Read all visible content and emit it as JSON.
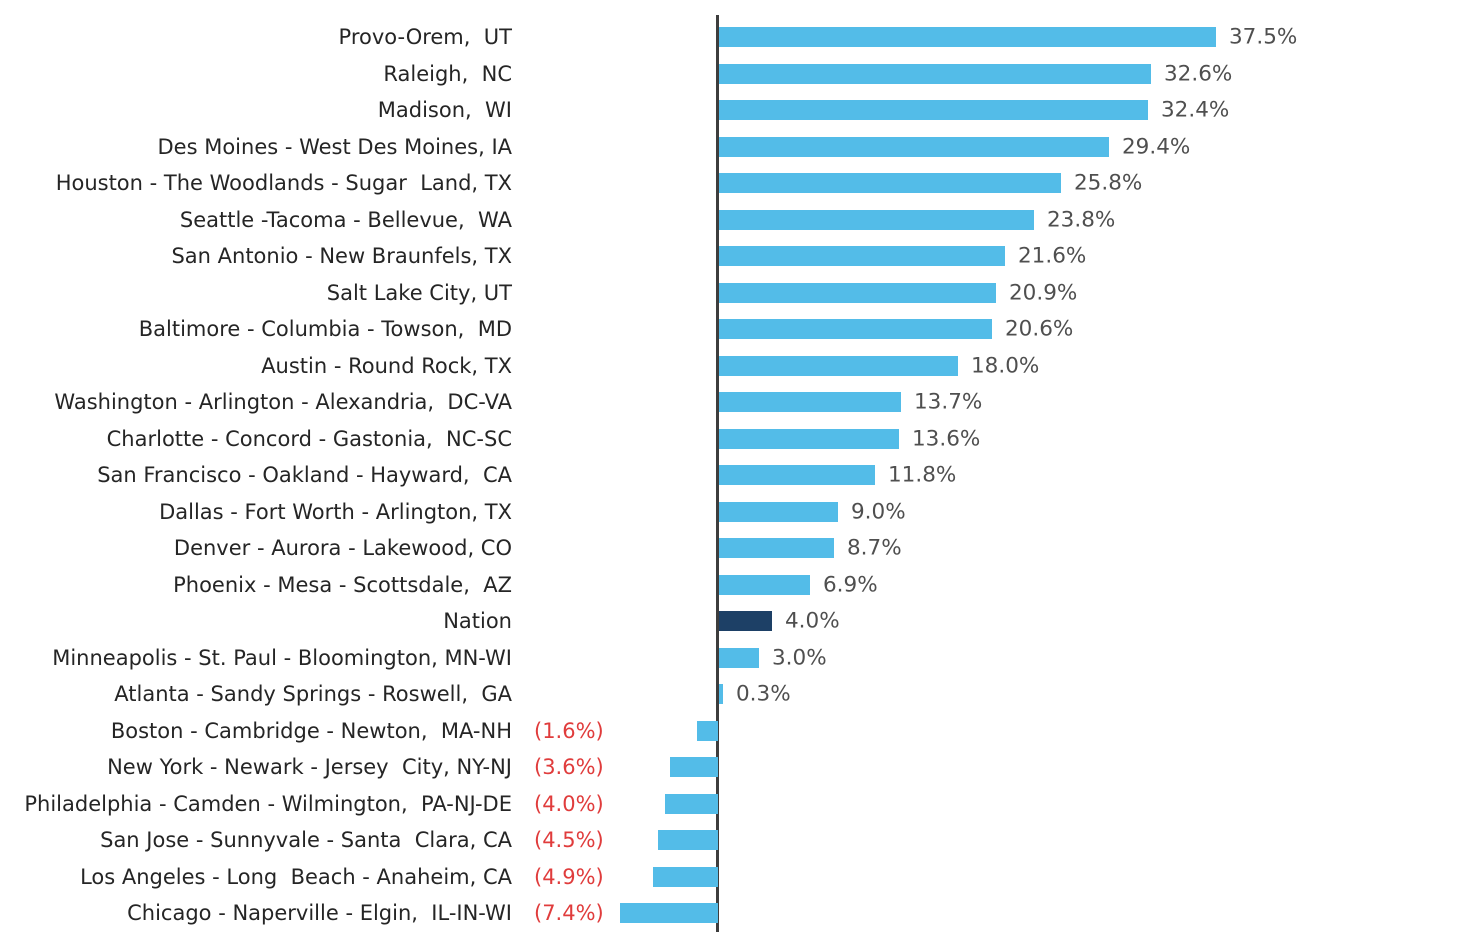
{
  "chart_data": {
    "type": "bar",
    "orientation": "horizontal",
    "title": "",
    "xlabel": "",
    "ylabel": "",
    "value_unit": "%",
    "xlim": [
      -8,
      40
    ],
    "grid": false,
    "legend": false,
    "zero_axis_line": true,
    "colors": {
      "bar": "#53bce8",
      "highlight_bar": "#1d4066",
      "negative_value_text": "#e03c3c",
      "value_text": "#4f4f4f",
      "category_text": "#252525",
      "axis_line": "#3d3d3d",
      "background": "#ffffff"
    },
    "bars": [
      {
        "category": "Provo-Orem,  UT",
        "value": 37.5,
        "label": "37.5%",
        "highlight": false
      },
      {
        "category": "Raleigh,  NC",
        "value": 32.6,
        "label": "32.6%",
        "highlight": false
      },
      {
        "category": "Madison,  WI",
        "value": 32.4,
        "label": "32.4%",
        "highlight": false
      },
      {
        "category": "Des Moines - West Des Moines, IA",
        "value": 29.4,
        "label": "29.4%",
        "highlight": false
      },
      {
        "category": "Houston - The Woodlands - Sugar  Land, TX",
        "value": 25.8,
        "label": "25.8%",
        "highlight": false
      },
      {
        "category": "Seattle -Tacoma - Bellevue,  WA",
        "value": 23.8,
        "label": "23.8%",
        "highlight": false
      },
      {
        "category": "San Antonio - New Braunfels, TX",
        "value": 21.6,
        "label": "21.6%",
        "highlight": false
      },
      {
        "category": "Salt Lake City, UT",
        "value": 20.9,
        "label": "20.9%",
        "highlight": false
      },
      {
        "category": "Baltimore - Columbia - Towson,  MD",
        "value": 20.6,
        "label": "20.6%",
        "highlight": false
      },
      {
        "category": "Austin - Round Rock, TX",
        "value": 18.0,
        "label": "18.0%",
        "highlight": false
      },
      {
        "category": "Washington - Arlington - Alexandria,  DC-VA",
        "value": 13.7,
        "label": "13.7%",
        "highlight": false
      },
      {
        "category": "Charlotte - Concord - Gastonia,  NC-SC",
        "value": 13.6,
        "label": "13.6%",
        "highlight": false
      },
      {
        "category": "San Francisco - Oakland - Hayward,  CA",
        "value": 11.8,
        "label": "11.8%",
        "highlight": false
      },
      {
        "category": "Dallas - Fort Worth - Arlington, TX",
        "value": 9.0,
        "label": "9.0%",
        "highlight": false
      },
      {
        "category": "Denver - Aurora - Lakewood, CO",
        "value": 8.7,
        "label": "8.7%",
        "highlight": false
      },
      {
        "category": "Phoenix - Mesa - Scottsdale,  AZ",
        "value": 6.9,
        "label": "6.9%",
        "highlight": false
      },
      {
        "category": "Nation",
        "value": 4.0,
        "label": "4.0%",
        "highlight": true
      },
      {
        "category": "Minneapolis - St. Paul - Bloomington, MN-WI",
        "value": 3.0,
        "label": "3.0%",
        "highlight": false
      },
      {
        "category": "Atlanta - Sandy Springs - Roswell,  GA",
        "value": 0.3,
        "label": "0.3%",
        "highlight": false
      },
      {
        "category": "Boston - Cambridge - Newton,  MA-NH",
        "value": -1.6,
        "label": "(1.6%)",
        "highlight": false
      },
      {
        "category": "New York - Newark - Jersey  City, NY-NJ",
        "value": -3.6,
        "label": "(3.6%)",
        "highlight": false
      },
      {
        "category": "Philadelphia - Camden - Wilmington,  PA-NJ-DE",
        "value": -4.0,
        "label": "(4.0%)",
        "highlight": false
      },
      {
        "category": "San Jose - Sunnyvale - Santa  Clara, CA",
        "value": -4.5,
        "label": "(4.5%)",
        "highlight": false
      },
      {
        "category": "Los Angeles - Long  Beach - Anaheim, CA",
        "value": -4.9,
        "label": "(4.9%)",
        "highlight": false
      },
      {
        "category": "Chicago - Naperville - Elgin,  IL-IN-WI",
        "value": -7.4,
        "label": "(7.4%)",
        "highlight": false
      }
    ]
  }
}
